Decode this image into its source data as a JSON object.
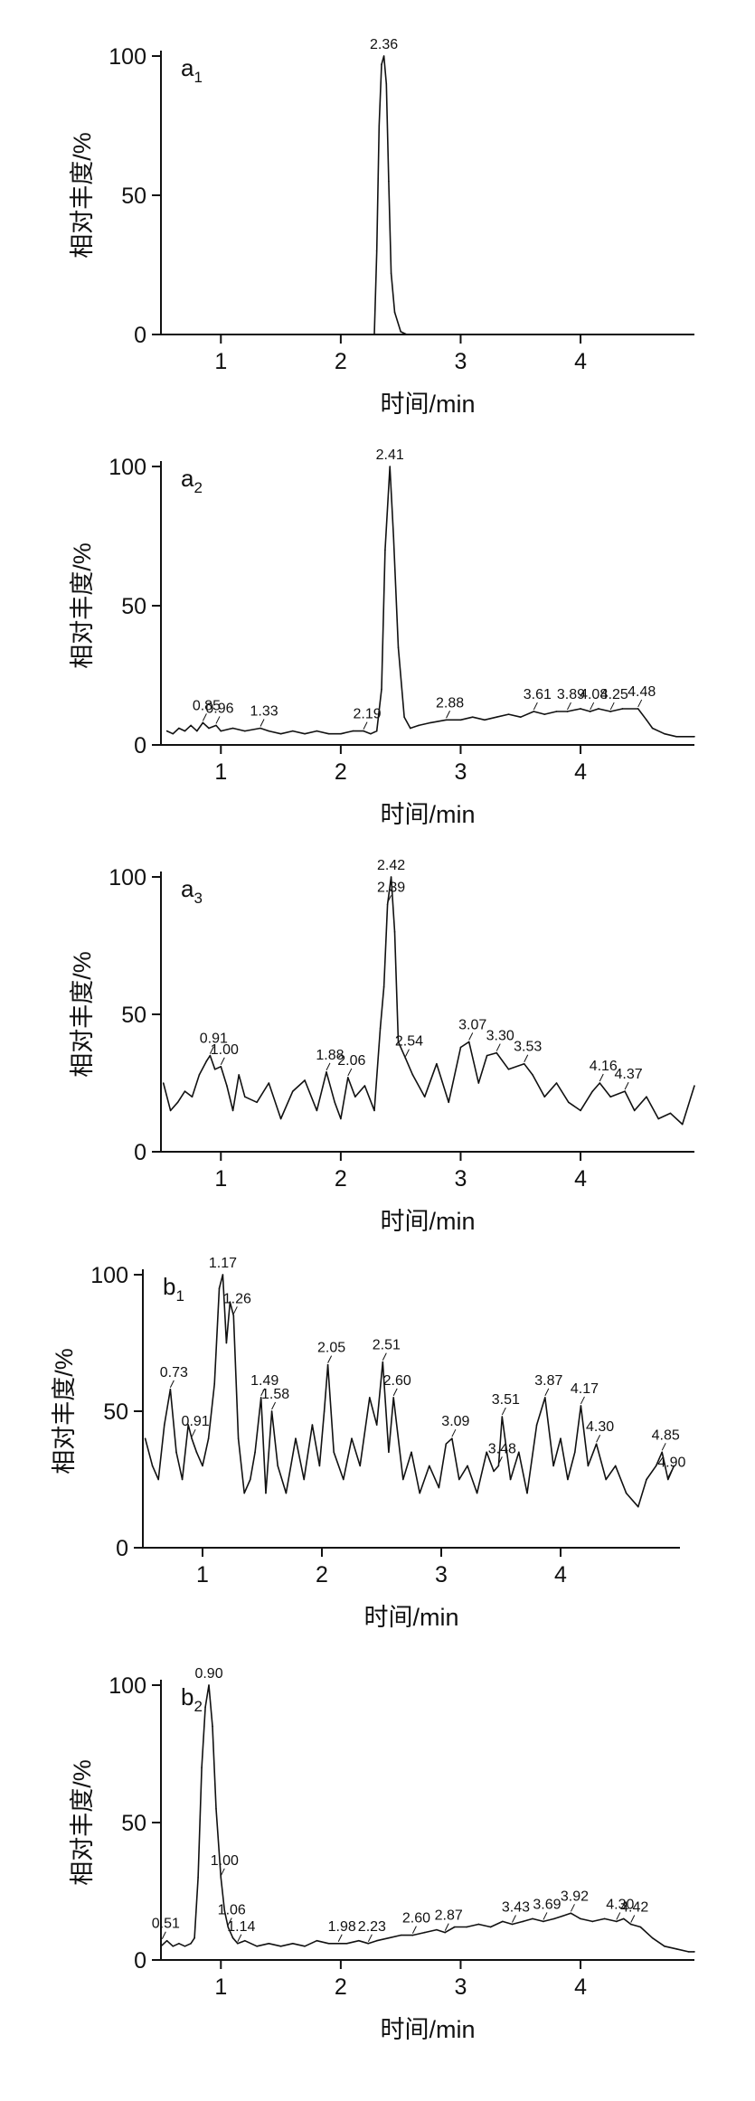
{
  "chart_data": [
    {
      "type": "line",
      "panel_label": "a",
      "panel_sub": "1",
      "xlabel": "时间/min",
      "ylabel": "相对丰度/%",
      "xlim": [
        0.5,
        4.95
      ],
      "ylim": [
        0,
        100
      ],
      "xticks": [
        "1",
        "2",
        "3",
        "4"
      ],
      "yticks": [
        "0",
        "50",
        "100"
      ],
      "series": [
        {
          "x": [
            2.28,
            2.3,
            2.32,
            2.34,
            2.36,
            2.38,
            2.4,
            2.42,
            2.45,
            2.5,
            2.55
          ],
          "y": [
            0,
            30,
            75,
            97,
            100,
            90,
            55,
            22,
            8,
            1,
            0
          ]
        }
      ],
      "annotations": [
        {
          "x": 2.36,
          "y": 100,
          "text": "2.36"
        }
      ]
    },
    {
      "type": "line",
      "panel_label": "a",
      "panel_sub": "2",
      "xlabel": "时间/min",
      "ylabel": "相对丰度/%",
      "xlim": [
        0.5,
        4.95
      ],
      "ylim": [
        0,
        100
      ],
      "xticks": [
        "1",
        "2",
        "3",
        "4"
      ],
      "yticks": [
        "0",
        "50",
        "100"
      ],
      "series": [
        {
          "x": [
            0.55,
            0.6,
            0.65,
            0.7,
            0.75,
            0.8,
            0.85,
            0.9,
            0.96,
            1.0,
            1.1,
            1.2,
            1.33,
            1.4,
            1.5,
            1.6,
            1.7,
            1.8,
            1.9,
            2.0,
            2.1,
            2.19,
            2.25,
            2.3,
            2.34,
            2.37,
            2.41,
            2.44,
            2.48,
            2.53,
            2.58,
            2.65,
            2.75,
            2.88,
            3.0,
            3.1,
            3.2,
            3.3,
            3.4,
            3.5,
            3.61,
            3.7,
            3.8,
            3.89,
            4.0,
            4.08,
            4.15,
            4.25,
            4.35,
            4.48,
            4.55,
            4.6,
            4.7,
            4.8,
            4.95
          ],
          "y": [
            5,
            4,
            6,
            5,
            7,
            5,
            8,
            6,
            7,
            5,
            6,
            5,
            6,
            5,
            4,
            5,
            4,
            5,
            4,
            4,
            5,
            5,
            4,
            5,
            20,
            70,
            100,
            75,
            35,
            10,
            6,
            7,
            8,
            9,
            9,
            10,
            9,
            10,
            11,
            10,
            12,
            11,
            12,
            12,
            13,
            12,
            13,
            12,
            13,
            13,
            9,
            6,
            4,
            3,
            3
          ]
        }
      ],
      "annotations": [
        {
          "x": 0.85,
          "y": 8,
          "text": "0.85"
        },
        {
          "x": 0.96,
          "y": 7,
          "text": "0.96"
        },
        {
          "x": 1.33,
          "y": 6,
          "text": "1.33"
        },
        {
          "x": 2.19,
          "y": 5,
          "text": "2.19"
        },
        {
          "x": 2.41,
          "y": 100,
          "text": "2.41"
        },
        {
          "x": 2.88,
          "y": 9,
          "text": "2.88"
        },
        {
          "x": 3.61,
          "y": 12,
          "text": "3.61"
        },
        {
          "x": 3.89,
          "y": 12,
          "text": "3.89"
        },
        {
          "x": 4.08,
          "y": 12,
          "text": "4.08"
        },
        {
          "x": 4.25,
          "y": 12,
          "text": "4.25"
        },
        {
          "x": 4.48,
          "y": 13,
          "text": "4.48"
        }
      ]
    },
    {
      "type": "line",
      "panel_label": "a",
      "panel_sub": "3",
      "xlabel": "时间/min",
      "ylabel": "相对丰度/%",
      "xlim": [
        0.5,
        4.95
      ],
      "ylim": [
        0,
        100
      ],
      "xticks": [
        "1",
        "2",
        "3",
        "4"
      ],
      "yticks": [
        "0",
        "50",
        "100"
      ],
      "series": [
        {
          "x": [
            0.52,
            0.58,
            0.64,
            0.7,
            0.76,
            0.82,
            0.88,
            0.91,
            0.95,
            1.0,
            1.05,
            1.1,
            1.15,
            1.2,
            1.3,
            1.4,
            1.5,
            1.6,
            1.7,
            1.8,
            1.88,
            1.95,
            2.0,
            2.06,
            2.12,
            2.2,
            2.28,
            2.33,
            2.36,
            2.39,
            2.42,
            2.45,
            2.48,
            2.54,
            2.6,
            2.7,
            2.8,
            2.9,
            3.0,
            3.07,
            3.15,
            3.22,
            3.3,
            3.4,
            3.53,
            3.6,
            3.7,
            3.8,
            3.9,
            4.0,
            4.1,
            4.16,
            4.25,
            4.37,
            4.45,
            4.55,
            4.65,
            4.75,
            4.85,
            4.95
          ],
          "y": [
            25,
            15,
            18,
            22,
            20,
            28,
            33,
            35,
            30,
            31,
            24,
            15,
            28,
            20,
            18,
            25,
            12,
            22,
            26,
            15,
            29,
            18,
            12,
            27,
            20,
            24,
            15,
            45,
            60,
            90,
            100,
            80,
            40,
            34,
            28,
            20,
            32,
            18,
            38,
            40,
            25,
            35,
            36,
            30,
            32,
            28,
            20,
            25,
            18,
            15,
            22,
            25,
            20,
            22,
            15,
            20,
            12,
            14,
            10,
            24
          ]
        }
      ],
      "annotations": [
        {
          "x": 0.91,
          "y": 35,
          "text": "0.91"
        },
        {
          "x": 1.0,
          "y": 31,
          "text": "1.00"
        },
        {
          "x": 1.88,
          "y": 29,
          "text": "1.88"
        },
        {
          "x": 2.06,
          "y": 27,
          "text": "2.06"
        },
        {
          "x": 2.39,
          "y": 90,
          "text": "2.39"
        },
        {
          "x": 2.42,
          "y": 100,
          "text": "2.42"
        },
        {
          "x": 2.54,
          "y": 34,
          "text": "2.54"
        },
        {
          "x": 3.07,
          "y": 40,
          "text": "3.07"
        },
        {
          "x": 3.3,
          "y": 36,
          "text": "3.30"
        },
        {
          "x": 3.53,
          "y": 32,
          "text": "3.53"
        },
        {
          "x": 4.16,
          "y": 25,
          "text": "4.16"
        },
        {
          "x": 4.37,
          "y": 22,
          "text": "4.37"
        }
      ]
    },
    {
      "type": "line",
      "panel_label": "b",
      "panel_sub": "1",
      "xlabel": "时间/min",
      "ylabel": "相对丰度/%",
      "xlim": [
        0.5,
        5.0
      ],
      "ylim": [
        0,
        100
      ],
      "xticks": [
        "1",
        "2",
        "3",
        "4"
      ],
      "yticks": [
        "0",
        "50",
        "100"
      ],
      "series": [
        {
          "x": [
            0.52,
            0.58,
            0.63,
            0.68,
            0.73,
            0.78,
            0.83,
            0.88,
            0.91,
            0.95,
            1.0,
            1.05,
            1.1,
            1.14,
            1.17,
            1.2,
            1.23,
            1.26,
            1.3,
            1.35,
            1.4,
            1.44,
            1.49,
            1.53,
            1.58,
            1.63,
            1.7,
            1.78,
            1.85,
            1.92,
            1.98,
            2.02,
            2.05,
            2.1,
            2.18,
            2.25,
            2.32,
            2.4,
            2.46,
            2.51,
            2.56,
            2.6,
            2.68,
            2.75,
            2.82,
            2.9,
            2.98,
            3.04,
            3.09,
            3.15,
            3.22,
            3.3,
            3.38,
            3.44,
            3.48,
            3.51,
            3.58,
            3.65,
            3.72,
            3.8,
            3.87,
            3.94,
            4.0,
            4.06,
            4.12,
            4.17,
            4.23,
            4.3,
            4.38,
            4.46,
            4.55,
            4.65,
            4.72,
            4.8,
            4.85,
            4.9,
            4.95
          ],
          "y": [
            40,
            30,
            25,
            45,
            58,
            35,
            25,
            45,
            40,
            35,
            30,
            40,
            60,
            95,
            100,
            75,
            90,
            85,
            40,
            20,
            25,
            35,
            55,
            20,
            50,
            30,
            20,
            40,
            25,
            45,
            30,
            50,
            67,
            35,
            25,
            40,
            30,
            55,
            45,
            68,
            35,
            55,
            25,
            35,
            20,
            30,
            22,
            38,
            40,
            25,
            30,
            20,
            35,
            28,
            30,
            48,
            25,
            35,
            20,
            45,
            55,
            30,
            40,
            25,
            35,
            52,
            30,
            38,
            25,
            30,
            20,
            15,
            25,
            30,
            35,
            25,
            30
          ]
        }
      ],
      "annotations": [
        {
          "x": 0.73,
          "y": 58,
          "text": "0.73"
        },
        {
          "x": 0.91,
          "y": 40,
          "text": "0.91"
        },
        {
          "x": 1.17,
          "y": 100,
          "text": "1.17"
        },
        {
          "x": 1.26,
          "y": 85,
          "text": "1.26"
        },
        {
          "x": 1.49,
          "y": 55,
          "text": "1.49"
        },
        {
          "x": 1.58,
          "y": 50,
          "text": "1.58"
        },
        {
          "x": 2.05,
          "y": 67,
          "text": "2.05"
        },
        {
          "x": 2.51,
          "y": 68,
          "text": "2.51"
        },
        {
          "x": 2.6,
          "y": 55,
          "text": "2.60"
        },
        {
          "x": 3.09,
          "y": 40,
          "text": "3.09"
        },
        {
          "x": 3.48,
          "y": 30,
          "text": "3.48"
        },
        {
          "x": 3.51,
          "y": 48,
          "text": "3.51"
        },
        {
          "x": 3.87,
          "y": 55,
          "text": "3.87"
        },
        {
          "x": 4.17,
          "y": 52,
          "text": "4.17"
        },
        {
          "x": 4.3,
          "y": 38,
          "text": "4.30"
        },
        {
          "x": 4.85,
          "y": 35,
          "text": "4.85"
        },
        {
          "x": 4.9,
          "y": 25,
          "text": "4.90"
        }
      ]
    },
    {
      "type": "line",
      "panel_label": "b",
      "panel_sub": "2",
      "xlabel": "时间/min",
      "ylabel": "相对丰度/%",
      "xlim": [
        0.5,
        4.95
      ],
      "ylim": [
        0,
        100
      ],
      "xticks": [
        "1",
        "2",
        "3",
        "4"
      ],
      "yticks": [
        "0",
        "50",
        "100"
      ],
      "series": [
        {
          "x": [
            0.5,
            0.55,
            0.6,
            0.65,
            0.7,
            0.75,
            0.78,
            0.81,
            0.84,
            0.87,
            0.9,
            0.93,
            0.96,
            1.0,
            1.03,
            1.06,
            1.1,
            1.14,
            1.2,
            1.3,
            1.4,
            1.5,
            1.6,
            1.7,
            1.8,
            1.9,
            1.98,
            2.05,
            2.15,
            2.23,
            2.3,
            2.4,
            2.5,
            2.6,
            2.7,
            2.8,
            2.87,
            2.95,
            3.05,
            3.15,
            3.25,
            3.35,
            3.43,
            3.52,
            3.6,
            3.69,
            3.78,
            3.85,
            3.92,
            4.0,
            4.1,
            4.2,
            4.3,
            4.36,
            4.42,
            4.5,
            4.6,
            4.7,
            4.8,
            4.9,
            4.95
          ],
          "y": [
            5,
            7,
            5,
            6,
            5,
            6,
            8,
            30,
            70,
            92,
            100,
            85,
            55,
            30,
            18,
            12,
            8,
            6,
            7,
            5,
            6,
            5,
            6,
            5,
            7,
            6,
            6,
            6,
            7,
            6,
            7,
            8,
            9,
            9,
            10,
            11,
            10,
            12,
            12,
            13,
            12,
            14,
            13,
            14,
            15,
            14,
            15,
            16,
            17,
            15,
            14,
            15,
            14,
            15,
            13,
            12,
            8,
            5,
            4,
            3,
            3
          ]
        }
      ],
      "annotations": [
        {
          "x": 0.51,
          "y": 7,
          "text": "0.51"
        },
        {
          "x": 0.9,
          "y": 100,
          "text": "0.90"
        },
        {
          "x": 1.0,
          "y": 30,
          "text": "1.00"
        },
        {
          "x": 1.06,
          "y": 12,
          "text": "1.06"
        },
        {
          "x": 1.14,
          "y": 6,
          "text": "1.14"
        },
        {
          "x": 1.98,
          "y": 6,
          "text": "1.98"
        },
        {
          "x": 2.23,
          "y": 6,
          "text": "2.23"
        },
        {
          "x": 2.6,
          "y": 9,
          "text": "2.60"
        },
        {
          "x": 2.87,
          "y": 10,
          "text": "2.87"
        },
        {
          "x": 3.43,
          "y": 13,
          "text": "3.43"
        },
        {
          "x": 3.69,
          "y": 14,
          "text": "3.69"
        },
        {
          "x": 3.92,
          "y": 17,
          "text": "3.92"
        },
        {
          "x": 4.3,
          "y": 14,
          "text": "4.30"
        },
        {
          "x": 4.42,
          "y": 13,
          "text": "4.42"
        }
      ]
    }
  ]
}
